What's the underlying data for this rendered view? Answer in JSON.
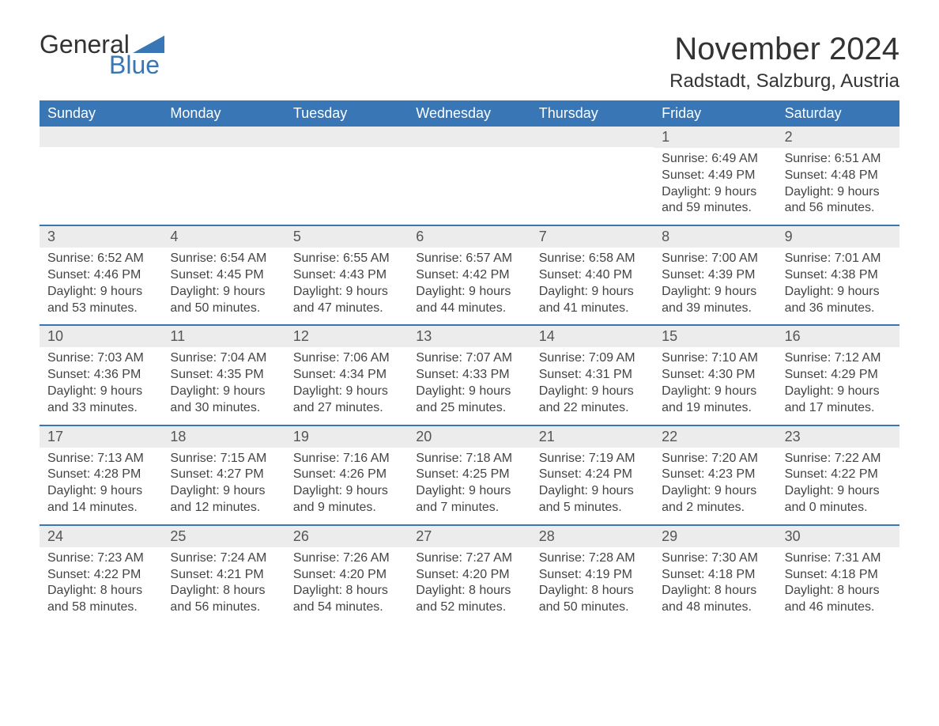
{
  "logo": {
    "general": "General",
    "blue": "Blue"
  },
  "title": "November 2024",
  "location": "Radstadt, Salzburg, Austria",
  "colors": {
    "header_bg": "#3876b5",
    "header_text": "#ffffff",
    "daynum_bg": "#ececec",
    "border": "#3876b5",
    "body_text": "#444444",
    "logo_blue": "#3876b5"
  },
  "day_names": [
    "Sunday",
    "Monday",
    "Tuesday",
    "Wednesday",
    "Thursday",
    "Friday",
    "Saturday"
  ],
  "weeks": [
    [
      {
        "empty": true
      },
      {
        "empty": true
      },
      {
        "empty": true
      },
      {
        "empty": true
      },
      {
        "empty": true
      },
      {
        "n": "1",
        "sunrise": "Sunrise: 6:49 AM",
        "sunset": "Sunset: 4:49 PM",
        "dl1": "Daylight: 9 hours",
        "dl2": "and 59 minutes."
      },
      {
        "n": "2",
        "sunrise": "Sunrise: 6:51 AM",
        "sunset": "Sunset: 4:48 PM",
        "dl1": "Daylight: 9 hours",
        "dl2": "and 56 minutes."
      }
    ],
    [
      {
        "n": "3",
        "sunrise": "Sunrise: 6:52 AM",
        "sunset": "Sunset: 4:46 PM",
        "dl1": "Daylight: 9 hours",
        "dl2": "and 53 minutes."
      },
      {
        "n": "4",
        "sunrise": "Sunrise: 6:54 AM",
        "sunset": "Sunset: 4:45 PM",
        "dl1": "Daylight: 9 hours",
        "dl2": "and 50 minutes."
      },
      {
        "n": "5",
        "sunrise": "Sunrise: 6:55 AM",
        "sunset": "Sunset: 4:43 PM",
        "dl1": "Daylight: 9 hours",
        "dl2": "and 47 minutes."
      },
      {
        "n": "6",
        "sunrise": "Sunrise: 6:57 AM",
        "sunset": "Sunset: 4:42 PM",
        "dl1": "Daylight: 9 hours",
        "dl2": "and 44 minutes."
      },
      {
        "n": "7",
        "sunrise": "Sunrise: 6:58 AM",
        "sunset": "Sunset: 4:40 PM",
        "dl1": "Daylight: 9 hours",
        "dl2": "and 41 minutes."
      },
      {
        "n": "8",
        "sunrise": "Sunrise: 7:00 AM",
        "sunset": "Sunset: 4:39 PM",
        "dl1": "Daylight: 9 hours",
        "dl2": "and 39 minutes."
      },
      {
        "n": "9",
        "sunrise": "Sunrise: 7:01 AM",
        "sunset": "Sunset: 4:38 PM",
        "dl1": "Daylight: 9 hours",
        "dl2": "and 36 minutes."
      }
    ],
    [
      {
        "n": "10",
        "sunrise": "Sunrise: 7:03 AM",
        "sunset": "Sunset: 4:36 PM",
        "dl1": "Daylight: 9 hours",
        "dl2": "and 33 minutes."
      },
      {
        "n": "11",
        "sunrise": "Sunrise: 7:04 AM",
        "sunset": "Sunset: 4:35 PM",
        "dl1": "Daylight: 9 hours",
        "dl2": "and 30 minutes."
      },
      {
        "n": "12",
        "sunrise": "Sunrise: 7:06 AM",
        "sunset": "Sunset: 4:34 PM",
        "dl1": "Daylight: 9 hours",
        "dl2": "and 27 minutes."
      },
      {
        "n": "13",
        "sunrise": "Sunrise: 7:07 AM",
        "sunset": "Sunset: 4:33 PM",
        "dl1": "Daylight: 9 hours",
        "dl2": "and 25 minutes."
      },
      {
        "n": "14",
        "sunrise": "Sunrise: 7:09 AM",
        "sunset": "Sunset: 4:31 PM",
        "dl1": "Daylight: 9 hours",
        "dl2": "and 22 minutes."
      },
      {
        "n": "15",
        "sunrise": "Sunrise: 7:10 AM",
        "sunset": "Sunset: 4:30 PM",
        "dl1": "Daylight: 9 hours",
        "dl2": "and 19 minutes."
      },
      {
        "n": "16",
        "sunrise": "Sunrise: 7:12 AM",
        "sunset": "Sunset: 4:29 PM",
        "dl1": "Daylight: 9 hours",
        "dl2": "and 17 minutes."
      }
    ],
    [
      {
        "n": "17",
        "sunrise": "Sunrise: 7:13 AM",
        "sunset": "Sunset: 4:28 PM",
        "dl1": "Daylight: 9 hours",
        "dl2": "and 14 minutes."
      },
      {
        "n": "18",
        "sunrise": "Sunrise: 7:15 AM",
        "sunset": "Sunset: 4:27 PM",
        "dl1": "Daylight: 9 hours",
        "dl2": "and 12 minutes."
      },
      {
        "n": "19",
        "sunrise": "Sunrise: 7:16 AM",
        "sunset": "Sunset: 4:26 PM",
        "dl1": "Daylight: 9 hours",
        "dl2": "and 9 minutes."
      },
      {
        "n": "20",
        "sunrise": "Sunrise: 7:18 AM",
        "sunset": "Sunset: 4:25 PM",
        "dl1": "Daylight: 9 hours",
        "dl2": "and 7 minutes."
      },
      {
        "n": "21",
        "sunrise": "Sunrise: 7:19 AM",
        "sunset": "Sunset: 4:24 PM",
        "dl1": "Daylight: 9 hours",
        "dl2": "and 5 minutes."
      },
      {
        "n": "22",
        "sunrise": "Sunrise: 7:20 AM",
        "sunset": "Sunset: 4:23 PM",
        "dl1": "Daylight: 9 hours",
        "dl2": "and 2 minutes."
      },
      {
        "n": "23",
        "sunrise": "Sunrise: 7:22 AM",
        "sunset": "Sunset: 4:22 PM",
        "dl1": "Daylight: 9 hours",
        "dl2": "and 0 minutes."
      }
    ],
    [
      {
        "n": "24",
        "sunrise": "Sunrise: 7:23 AM",
        "sunset": "Sunset: 4:22 PM",
        "dl1": "Daylight: 8 hours",
        "dl2": "and 58 minutes."
      },
      {
        "n": "25",
        "sunrise": "Sunrise: 7:24 AM",
        "sunset": "Sunset: 4:21 PM",
        "dl1": "Daylight: 8 hours",
        "dl2": "and 56 minutes."
      },
      {
        "n": "26",
        "sunrise": "Sunrise: 7:26 AM",
        "sunset": "Sunset: 4:20 PM",
        "dl1": "Daylight: 8 hours",
        "dl2": "and 54 minutes."
      },
      {
        "n": "27",
        "sunrise": "Sunrise: 7:27 AM",
        "sunset": "Sunset: 4:20 PM",
        "dl1": "Daylight: 8 hours",
        "dl2": "and 52 minutes."
      },
      {
        "n": "28",
        "sunrise": "Sunrise: 7:28 AM",
        "sunset": "Sunset: 4:19 PM",
        "dl1": "Daylight: 8 hours",
        "dl2": "and 50 minutes."
      },
      {
        "n": "29",
        "sunrise": "Sunrise: 7:30 AM",
        "sunset": "Sunset: 4:18 PM",
        "dl1": "Daylight: 8 hours",
        "dl2": "and 48 minutes."
      },
      {
        "n": "30",
        "sunrise": "Sunrise: 7:31 AM",
        "sunset": "Sunset: 4:18 PM",
        "dl1": "Daylight: 8 hours",
        "dl2": "and 46 minutes."
      }
    ]
  ]
}
